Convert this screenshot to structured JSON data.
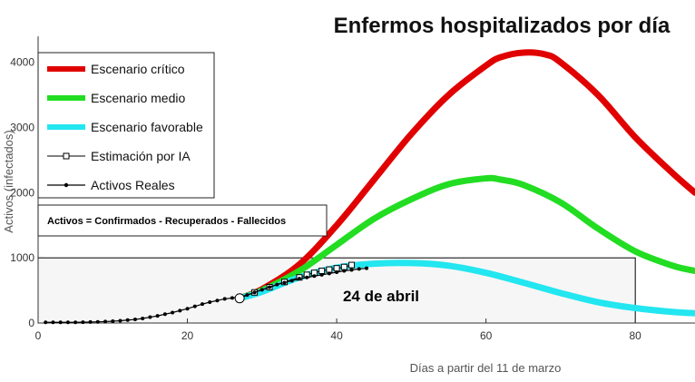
{
  "chart_data": {
    "type": "line",
    "title": "Enfermos hospitalizados por día",
    "xlabel": "Días a partir del 11 de marzo",
    "ylabel": "Activos (infectados)",
    "xlim": [
      0,
      88
    ],
    "ylim": [
      0,
      4400
    ],
    "x_ticks": [
      0,
      20,
      40,
      60,
      80
    ],
    "y_ticks": [
      0,
      1000,
      2000,
      3000,
      4000
    ],
    "x_tick_labels": [
      "0",
      "20",
      "40",
      "60",
      "80"
    ],
    "y_tick_labels": [
      "0",
      "1000",
      "2000",
      "3000",
      "4000"
    ],
    "grid": false,
    "legend_position": "top-left",
    "series": [
      {
        "name": "Escenario crítico",
        "color": "#e00000",
        "style": "thick-line",
        "x": [
          27,
          30,
          35,
          40,
          45,
          50,
          55,
          60,
          62,
          65,
          68,
          70,
          75,
          80,
          85,
          88
        ],
        "y": [
          380,
          520,
          900,
          1500,
          2200,
          2900,
          3500,
          3950,
          4080,
          4150,
          4120,
          4000,
          3500,
          2850,
          2300,
          2000
        ]
      },
      {
        "name": "Escenario medio",
        "color": "#22dd22",
        "style": "thick-line",
        "x": [
          27,
          30,
          35,
          40,
          45,
          50,
          55,
          60,
          62,
          65,
          70,
          75,
          80,
          85,
          88
        ],
        "y": [
          380,
          500,
          800,
          1200,
          1600,
          1900,
          2130,
          2220,
          2200,
          2120,
          1850,
          1450,
          1100,
          880,
          800
        ]
      },
      {
        "name": "Escenario favorable",
        "color": "#22e6f0",
        "style": "thick-line",
        "x": [
          27,
          30,
          35,
          40,
          45,
          50,
          55,
          60,
          65,
          70,
          75,
          80,
          85,
          88
        ],
        "y": [
          380,
          480,
          700,
          850,
          910,
          920,
          880,
          770,
          620,
          460,
          320,
          230,
          170,
          150
        ]
      },
      {
        "name": "Estimación por IA",
        "color": "#000000",
        "style": "square-marker",
        "x": [
          27,
          29,
          31,
          33,
          35,
          36,
          37,
          38,
          39,
          40,
          41,
          42
        ],
        "y": [
          380,
          470,
          550,
          630,
          700,
          740,
          770,
          800,
          820,
          840,
          860,
          890
        ]
      },
      {
        "name": "Activos Reales",
        "color": "#000000",
        "style": "dot-line",
        "x": [
          1,
          2,
          3,
          4,
          5,
          6,
          7,
          8,
          9,
          10,
          11,
          12,
          13,
          14,
          15,
          16,
          17,
          18,
          19,
          20,
          21,
          22,
          23,
          24,
          25,
          26,
          27,
          28,
          29,
          30,
          31,
          32,
          33,
          34,
          35,
          36,
          37,
          38,
          39,
          40,
          41,
          42,
          43,
          44
        ],
        "y": [
          10,
          10,
          10,
          10,
          10,
          12,
          15,
          18,
          22,
          28,
          35,
          45,
          55,
          70,
          90,
          110,
          135,
          160,
          190,
          220,
          255,
          290,
          320,
          345,
          370,
          385,
          400,
          430,
          470,
          510,
          550,
          590,
          620,
          650,
          680,
          700,
          720,
          740,
          760,
          780,
          800,
          815,
          830,
          840
        ]
      }
    ],
    "annotations": {
      "note_box": "Activos = Confirmados - Recuperados - Fallecidos",
      "date_label": "24 de abril"
    }
  }
}
